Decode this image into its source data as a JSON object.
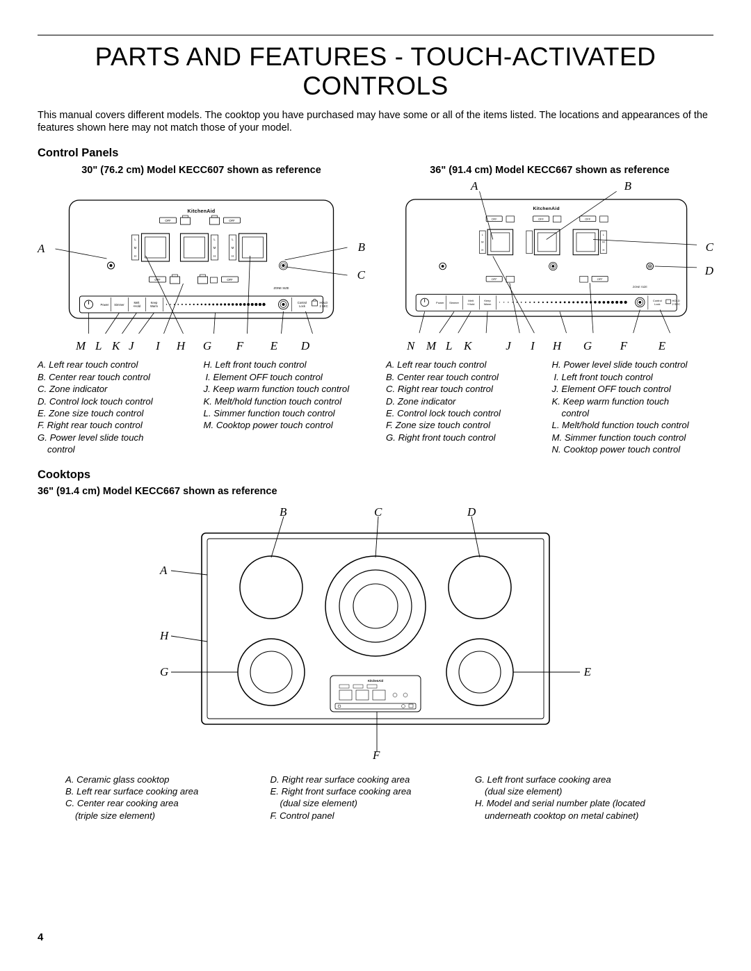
{
  "title": "PARTS AND FEATURES - TOUCH-ACTIVATED CONTROLS",
  "intro": "This manual covers different models. The cooktop you have purchased may have some or all of the items listed. The locations and appearances of the features shown here may not match those of your model.",
  "page_number": "4",
  "brand": "KitchenAid",
  "control_panels_heading": "Control Panels",
  "panel30": {
    "header": "30\" (76.2 cm) Model KECC607 shown as reference",
    "side_left": "A",
    "side_right_top": "B",
    "side_right_bot": "C",
    "bottom_letters": [
      "M",
      "L",
      "K",
      "J",
      "I",
      "H",
      "G",
      "F",
      "E",
      "D"
    ],
    "legend_left": [
      "A. Left rear touch control",
      "B. Center rear touch control",
      "C. Zone indicator",
      "D. Control lock touch control",
      "E. Zone size touch control",
      "F. Right rear touch control",
      "G. Power level slide touch",
      "control"
    ],
    "legend_right": [
      "H. Left front touch control",
      "I. Element OFF touch control",
      "J. Keep warm function touch control",
      "K. Melt/hold function touch control",
      "L. Simmer function touch control",
      "M. Cooktop power touch control"
    ]
  },
  "panel36": {
    "header": "36\" (91.4 cm) Model KECC667 shown as reference",
    "top_left": "A",
    "top_right": "B",
    "side_right_top": "C",
    "side_right_bot": "D",
    "bottom_letters": [
      "N",
      "M",
      "L",
      "K",
      "J",
      "I",
      "H",
      "G",
      "F",
      "E"
    ],
    "legend_left": [
      "A. Left rear touch control",
      "B. Center rear touch control",
      "C. Right rear touch control",
      "D. Zone indicator",
      "E. Control lock touch control",
      "F. Zone size touch control",
      "G. Right front touch control"
    ],
    "legend_right": [
      "H. Power level slide touch control",
      "I. Left front touch control",
      "J. Element OFF touch control",
      "K. Keep warm function touch",
      "control",
      "L. Melt/hold function touch control",
      "M. Simmer function touch control",
      "N. Cooktop power touch control"
    ]
  },
  "cooktops_heading": "Cooktops",
  "cooktop_header": "36\" (91.4 cm) Model KECC667 shown as reference",
  "cooktop_callouts": {
    "A": "A",
    "B": "B",
    "C": "C",
    "D": "D",
    "E": "E",
    "F": "F",
    "G": "G",
    "H": "H"
  },
  "cooktop_legend": {
    "col1": [
      "A. Ceramic glass cooktop",
      "B. Left rear surface cooking area",
      "C. Center rear cooking area",
      "(triple size element)"
    ],
    "col2": [
      "D. Right rear surface cooking area",
      "E. Right front surface cooking area",
      "(dual size element)",
      "F. Control panel"
    ],
    "col3": [
      "G. Left front surface cooking area",
      "(dual size element)",
      "H. Model and serial number plate (located",
      "underneath cooktop on metal cabinet)"
    ]
  },
  "panel_labels": {
    "off": "OFF",
    "power": "Power",
    "simmer": "Simmer",
    "melthold": "Melt\n+Hold",
    "keepwarm": "Keep\nWarm",
    "controllock": "Control\nLock",
    "hold2sec": "HOLD\n2 SEC",
    "zonesize": "ZONE SIZE",
    "L": "L",
    "M": "M",
    "H": "H"
  },
  "colors": {
    "line": "#000",
    "bg": "#fff"
  }
}
